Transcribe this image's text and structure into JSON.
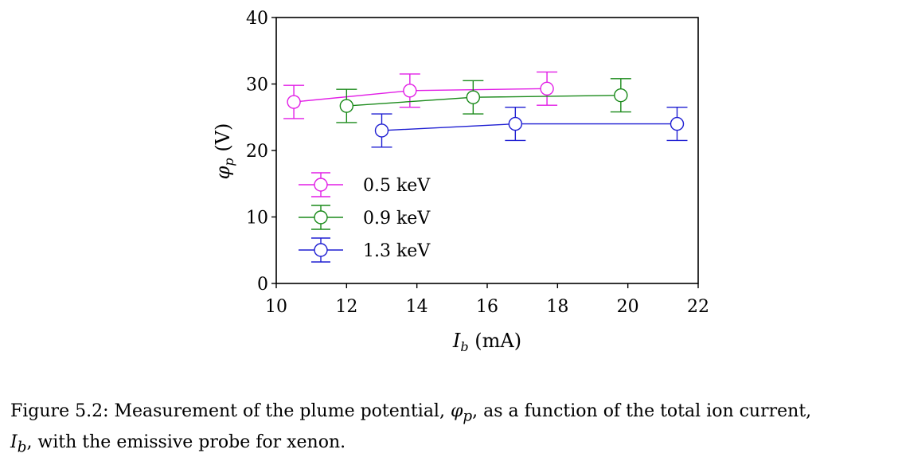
{
  "chart_data": {
    "type": "line",
    "xlabel_main": "I",
    "xlabel_sub": "b",
    "xlabel_unit": " (mA)",
    "ylabel_main": "φ",
    "ylabel_sub": "p",
    "ylabel_unit": " (V)",
    "xlim": [
      10,
      22
    ],
    "ylim": [
      0,
      40
    ],
    "xticks": [
      10,
      12,
      14,
      16,
      18,
      20,
      22
    ],
    "yticks": [
      0,
      10,
      20,
      30,
      40
    ],
    "grid": false,
    "legend_position": "lower-left",
    "series": [
      {
        "name": "0.5 keV",
        "color": "#e21ee6",
        "x": [
          10.5,
          13.8,
          17.7
        ],
        "y": [
          27.3,
          29.0,
          29.3
        ],
        "err": [
          2.5,
          2.5,
          2.5
        ]
      },
      {
        "name": "0.9 keV",
        "color": "#1a8a1a",
        "x": [
          12.0,
          15.6,
          19.8
        ],
        "y": [
          26.7,
          28.0,
          28.3
        ],
        "err": [
          2.5,
          2.5,
          2.5
        ]
      },
      {
        "name": "1.3 keV",
        "color": "#1e1ed2",
        "x": [
          13.0,
          16.8,
          21.4
        ],
        "y": [
          23.0,
          24.0,
          24.0
        ],
        "err": [
          2.5,
          2.5,
          2.5
        ]
      }
    ]
  },
  "caption": {
    "prefix": "Figure 5.2: Measurement of the plume potential, ",
    "phi": "φ",
    "phi_sub": "p",
    "middle": ", as a function of the total ion current,",
    "I": "I",
    "I_sub": "b",
    "suffix": ", with the emissive probe for xenon."
  }
}
